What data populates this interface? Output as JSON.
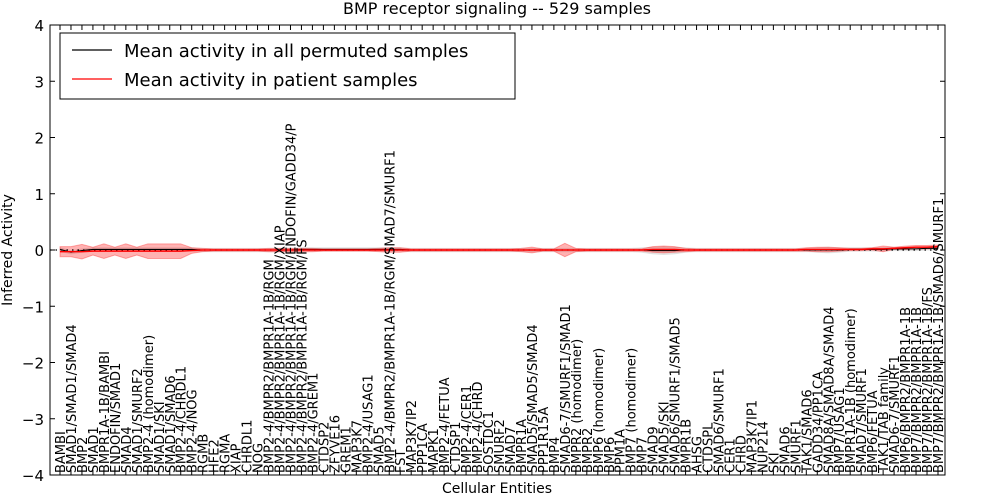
{
  "chart_data": {
    "type": "line",
    "title": "BMP receptor signaling -- 529 samples",
    "xlabel": "Cellular Entities",
    "ylabel": "Inferred Activity",
    "ylim": [
      -4,
      4
    ],
    "yticks": [
      -4,
      -3,
      -2,
      -1,
      0,
      1,
      2,
      3,
      4
    ],
    "ytick_labels": [
      "−4",
      "−3",
      "−2",
      "−1",
      "0",
      "1",
      "2",
      "3",
      "4"
    ],
    "grid": false,
    "legend_position": "top-left",
    "categories": [
      "BAMBI",
      "SMAD1/SMAD1/SMAD4",
      "BMP2",
      "SMAD1",
      "BMPR1A-1B/BAMBI",
      "ENDOFIN/SMAD1",
      "SMAD4",
      "SMAD1/SMURF2",
      "BMP2-4 (homodimer)",
      "SMAD1/SKI",
      "SMAD1/SMAD6",
      "BMP2-4/CHRDL1",
      "BMP2-4/NOG",
      "RGMB",
      "HFE2",
      "RGMA",
      "XIAP",
      "CHRDL1",
      "NOG",
      "BMP2-4/BMPR2/BMPR1A-1B/RGM",
      "BMP2-4/BMPR2/BMPR1A-1B/RGM/XIAP",
      "BMP2-4/BMPR2/BMPR1A-1B/RGM/ENDOFIN/GADD34/P",
      "BMP2-4/BMPR2/BMPR1A-1B/RGM/FS",
      "BMP2-4/GREM1",
      "CTDSP2",
      "ZFYVE16",
      "GREM1",
      "MAP3K7",
      "BMP2-4/USAG1",
      "SMAD5",
      "BMP2-4/BMPR2/BMPR1A-1B/RGM/SMAD7/SMURF1",
      "FST",
      "MAP3K7IP2",
      "PPP1CA",
      "MAPK1",
      "BMP2-4/FETUA",
      "CTDSP1",
      "BMP2-4/CER1",
      "BMP2-4/CHRD",
      "SOSTDC1",
      "SMURF2",
      "SMAD7",
      "BMPR1A",
      "SMAD5/SMAD5/SMAD4",
      "PPP1R15A",
      "BMP4",
      "SMAD6-7/SMURF1/SMAD1",
      "BMPR2 (homodimer)",
      "BMPR2",
      "BMP6 (homodimer)",
      "BMP6",
      "PPM1A",
      "BMP7 (homodimer)",
      "BMP7",
      "SMAD9",
      "SMAD5/SKI",
      "SMAD6/SMURF1/SMAD5",
      "BMPR1B",
      "AHSG",
      "CTDSPL",
      "SMAD6/SMURF1",
      "CER1",
      "CHRD",
      "MAP3K7IP1",
      "NUP214",
      "SKI",
      "SMAD6",
      "SMURF1",
      "TAK1/SMAD6",
      "GADD34/PP1CA",
      "SMAD8A/SMAD8A/SMAD4",
      "BMP7/USAG1",
      "BMPR1A-1B (homodimer)",
      "SMAD7/SMURF1",
      "BMP6/FETUA",
      "TAK1/TAB family",
      "SMAD6-7/SMURF1",
      "BMP6/BMPR2/BMPR1A-1B",
      "BMP7/BMPR2/BMPR1A-1B",
      "BMP7/BMPR2/BMPR1A-1B/FS",
      "BMP7/BMPR2/BMPR1A-1B/SMAD6/SMURF1"
    ],
    "series": [
      {
        "name": "Mean activity in all permuted samples",
        "color": "#000000",
        "values": [
          0.01,
          -0.04,
          -0.01,
          0.01,
          0.01,
          0.01,
          0.01,
          0.01,
          0.01,
          0.01,
          0.01,
          0.01,
          0.01,
          0.0,
          0.0,
          0.0,
          0.0,
          0.0,
          0.0,
          0.0,
          0.0,
          0.0,
          0.01,
          0.01,
          0.01,
          0.01,
          0.01,
          0.01,
          0.01,
          0.01,
          0.01,
          0.01,
          0.0,
          0.0,
          0.0,
          0.0,
          0.0,
          0.0,
          0.0,
          0.0,
          0.0,
          0.0,
          0.0,
          0.0,
          0.0,
          0.0,
          0.0,
          0.0,
          0.0,
          0.0,
          0.0,
          0.0,
          0.0,
          0.0,
          -0.01,
          -0.01,
          -0.01,
          0.0,
          0.0,
          0.0,
          0.0,
          0.0,
          0.0,
          0.0,
          0.0,
          0.0,
          0.0,
          0.0,
          0.0,
          0.0,
          0.0,
          0.0,
          0.01,
          0.01,
          0.01,
          0.01,
          0.02,
          0.02,
          0.02,
          0.03,
          0.03
        ],
        "spread": [
          0.03,
          0.03,
          0.03,
          0.03,
          0.03,
          0.03,
          0.03,
          0.03,
          0.03,
          0.03,
          0.03,
          0.03,
          0.03,
          0.03,
          0.03,
          0.03,
          0.03,
          0.03,
          0.03,
          0.03,
          0.03,
          0.03,
          0.03,
          0.03,
          0.03,
          0.03,
          0.03,
          0.03,
          0.03,
          0.03,
          0.03,
          0.03,
          0.03,
          0.03,
          0.03,
          0.03,
          0.03,
          0.03,
          0.03,
          0.03,
          0.03,
          0.03,
          0.03,
          0.03,
          0.03,
          0.03,
          0.03,
          0.03,
          0.03,
          0.03,
          0.03,
          0.03,
          0.03,
          0.04,
          0.06,
          0.07,
          0.06,
          0.04,
          0.03,
          0.03,
          0.03,
          0.03,
          0.03,
          0.03,
          0.03,
          0.03,
          0.03,
          0.03,
          0.03,
          0.04,
          0.05,
          0.04,
          0.03,
          0.03,
          0.03,
          0.03,
          0.03,
          0.03,
          0.03,
          0.03,
          0.03
        ]
      },
      {
        "name": "Mean activity in patient samples",
        "color": "#ff0000",
        "values": [
          -0.03,
          -0.03,
          -0.03,
          -0.02,
          -0.02,
          -0.02,
          -0.02,
          -0.02,
          -0.02,
          -0.02,
          -0.02,
          -0.02,
          -0.01,
          0.0,
          0.0,
          0.0,
          0.0,
          0.0,
          0.0,
          0.0,
          0.0,
          0.0,
          0.0,
          0.0,
          0.0,
          0.0,
          0.0,
          0.0,
          0.0,
          0.0,
          0.0,
          0.0,
          0.0,
          0.0,
          0.0,
          0.0,
          0.0,
          0.0,
          0.0,
          0.0,
          0.0,
          0.0,
          0.0,
          0.0,
          0.0,
          0.0,
          0.0,
          0.0,
          0.0,
          0.0,
          0.0,
          0.0,
          0.0,
          0.0,
          0.01,
          0.01,
          0.01,
          0.0,
          0.0,
          0.0,
          0.0,
          0.0,
          0.0,
          0.0,
          0.0,
          0.0,
          0.0,
          0.0,
          0.01,
          0.01,
          0.01,
          0.01,
          0.01,
          0.01,
          0.02,
          0.02,
          0.03,
          0.04,
          0.05,
          0.05,
          0.06
        ],
        "spread": [
          0.09,
          0.09,
          0.13,
          0.07,
          0.13,
          0.07,
          0.13,
          0.07,
          0.13,
          0.13,
          0.13,
          0.13,
          0.05,
          0.03,
          0.02,
          0.02,
          0.02,
          0.02,
          0.02,
          0.03,
          0.03,
          0.03,
          0.03,
          0.03,
          0.02,
          0.02,
          0.02,
          0.02,
          0.02,
          0.03,
          0.04,
          0.04,
          0.02,
          0.02,
          0.02,
          0.02,
          0.02,
          0.02,
          0.02,
          0.02,
          0.02,
          0.02,
          0.03,
          0.05,
          0.02,
          0.02,
          0.12,
          0.03,
          0.02,
          0.02,
          0.02,
          0.02,
          0.02,
          0.02,
          0.05,
          0.06,
          0.05,
          0.03,
          0.02,
          0.02,
          0.02,
          0.02,
          0.02,
          0.02,
          0.02,
          0.02,
          0.02,
          0.02,
          0.03,
          0.04,
          0.04,
          0.03,
          0.02,
          0.02,
          0.02,
          0.05,
          0.02,
          0.03,
          0.03,
          0.03,
          0.03
        ]
      }
    ]
  }
}
